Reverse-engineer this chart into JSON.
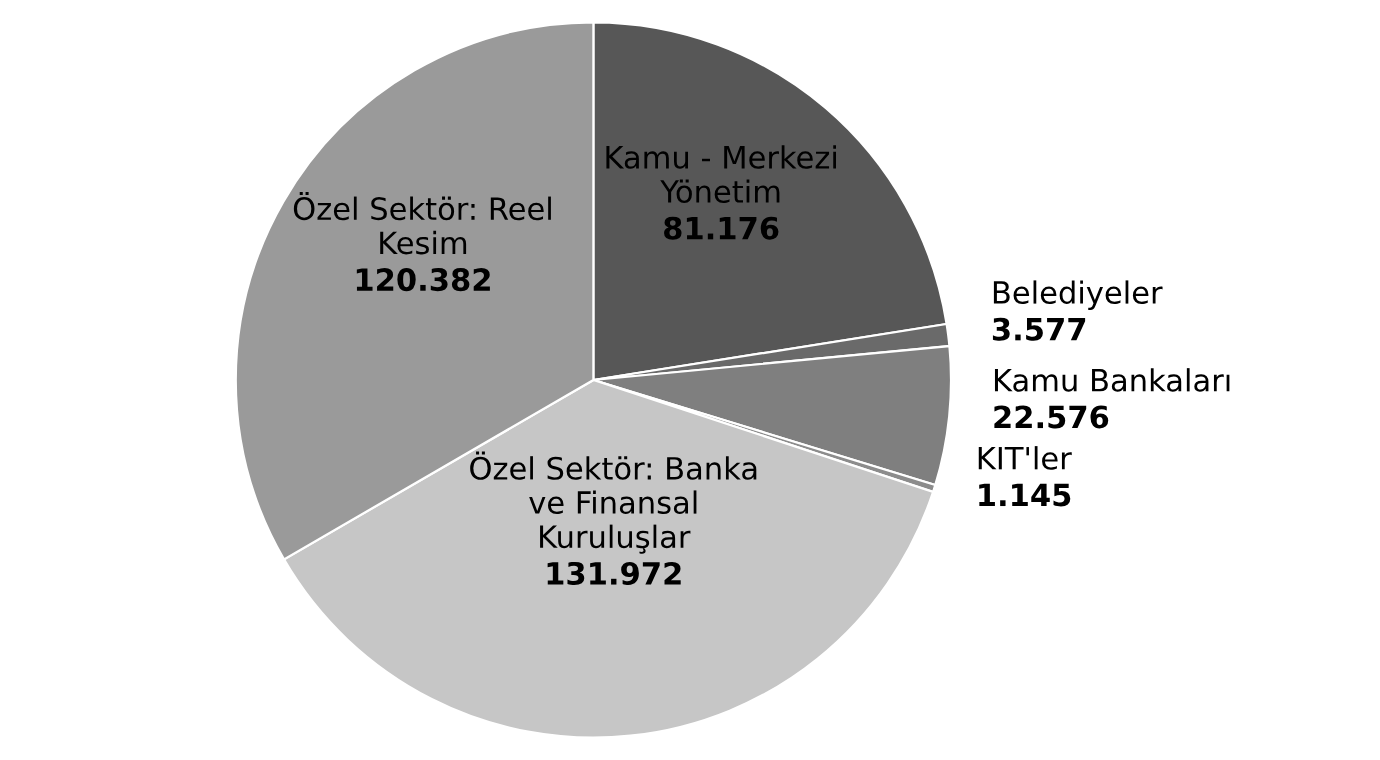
{
  "chart_data": {
    "type": "pie",
    "categories": [
      "Kamu - Merkezi Yönetim",
      "Belediyeler",
      "Kamu Bankaları",
      "KIT'ler",
      "Özel Sektör: Banka ve Finansal Kuruluşlar",
      "Özel Sektör: Reel Kesim"
    ],
    "values": [
      81.176,
      3.577,
      22.576,
      1.145,
      131.972,
      120.382
    ],
    "value_labels": [
      "81.176",
      "3.577",
      "22.576",
      "1.145",
      "131.972",
      "120.382"
    ],
    "colors": [
      "#575757",
      "#6a6a6a",
      "#7f7f7f",
      "#8c8c8c",
      "#c6c6c6",
      "#9a9a9a"
    ]
  }
}
